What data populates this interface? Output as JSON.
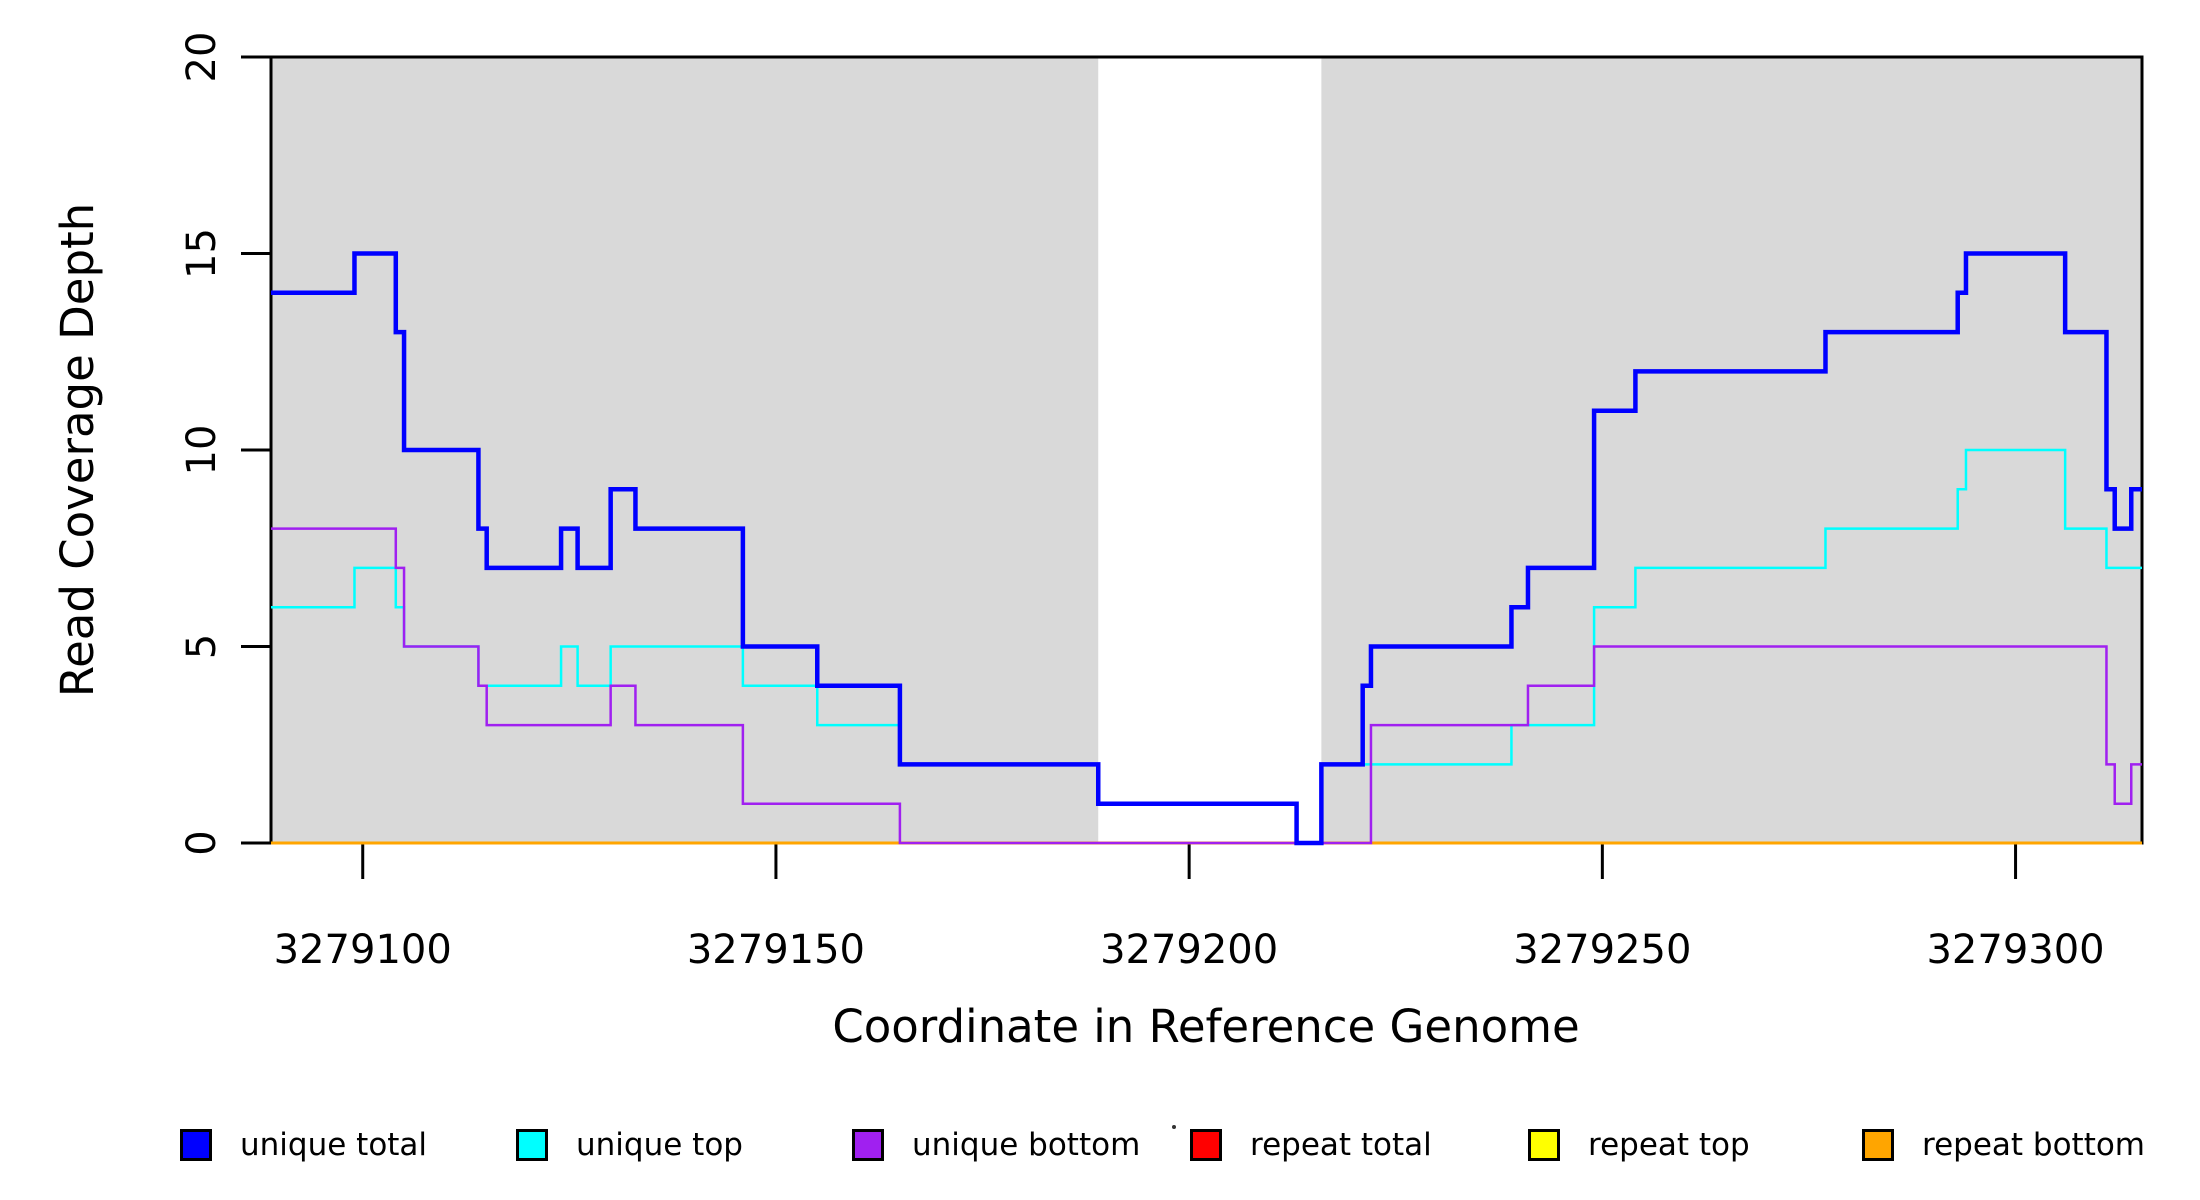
{
  "figure": {
    "background_color": "#FFFFFF",
    "region_highlight_color": "#D9D9D9",
    "axis_color": "#000000",
    "xlabel": "Coordinate in Reference Genome",
    "ylabel": "Read Coverage Depth"
  },
  "chart_data": {
    "type": "line",
    "subtype": "step",
    "title": "",
    "xlabel": "Coordinate in Reference Genome",
    "ylabel": "Read Coverage Depth",
    "xlim": [
      3279088.9,
      3279315.3
    ],
    "ylim": [
      0,
      20
    ],
    "x_ticks": [
      3279100,
      3279150,
      3279200,
      3279250,
      3279300
    ],
    "y_ticks": [
      0,
      5,
      10,
      15,
      20
    ],
    "grid": false,
    "legend_position": "bottom",
    "shaded_regions": [
      {
        "name": "covered-region-left",
        "x0": 3279088.9,
        "x1": 3279189,
        "color": "#D9D9D9"
      },
      {
        "name": "covered-region-right",
        "x0": 3279216,
        "x1": 3279315.3,
        "color": "#D9D9D9"
      }
    ],
    "series": [
      {
        "name": "unique total",
        "color": "#0000FF",
        "line_width": 4.5,
        "steps": [
          [
            3279089,
            14
          ],
          [
            3279099,
            15
          ],
          [
            3279104,
            13
          ],
          [
            3279105,
            10
          ],
          [
            3279114,
            8
          ],
          [
            3279115,
            7
          ],
          [
            3279124,
            8
          ],
          [
            3279126,
            7
          ],
          [
            3279130,
            9
          ],
          [
            3279133,
            8
          ],
          [
            3279146,
            5
          ],
          [
            3279155,
            4
          ],
          [
            3279165,
            2
          ],
          [
            3279189,
            1
          ],
          [
            3279213,
            0
          ],
          [
            3279216,
            2
          ],
          [
            3279221,
            4
          ],
          [
            3279222,
            5
          ],
          [
            3279239,
            6
          ],
          [
            3279241,
            7
          ],
          [
            3279249,
            11
          ],
          [
            3279254,
            12
          ],
          [
            3279277,
            13
          ],
          [
            3279293,
            14
          ],
          [
            3279294,
            15
          ],
          [
            3279306,
            13
          ],
          [
            3279311,
            9
          ],
          [
            3279312,
            8
          ],
          [
            3279314,
            9
          ]
        ]
      },
      {
        "name": "unique top",
        "color": "#00FFFF",
        "line_width": 2.5,
        "steps": [
          [
            3279089,
            6
          ],
          [
            3279099,
            7
          ],
          [
            3279104,
            6
          ],
          [
            3279105,
            5
          ],
          [
            3279114,
            4
          ],
          [
            3279124,
            5
          ],
          [
            3279126,
            4
          ],
          [
            3279130,
            5
          ],
          [
            3279146,
            4
          ],
          [
            3279155,
            3
          ],
          [
            3279165,
            2
          ],
          [
            3279189,
            1
          ],
          [
            3279213,
            0
          ],
          [
            3279216,
            2
          ],
          [
            3279239,
            3
          ],
          [
            3279249,
            6
          ],
          [
            3279254,
            7
          ],
          [
            3279277,
            8
          ],
          [
            3279293,
            9
          ],
          [
            3279294,
            10
          ],
          [
            3279306,
            8
          ],
          [
            3279311,
            7
          ]
        ]
      },
      {
        "name": "unique bottom",
        "color": "#A020F0",
        "line_width": 2.5,
        "steps": [
          [
            3279089,
            8
          ],
          [
            3279104,
            7
          ],
          [
            3279105,
            5
          ],
          [
            3279114,
            4
          ],
          [
            3279115,
            3
          ],
          [
            3279130,
            4
          ],
          [
            3279133,
            3
          ],
          [
            3279146,
            1
          ],
          [
            3279165,
            0
          ],
          [
            3279222,
            3
          ],
          [
            3279241,
            4
          ],
          [
            3279249,
            5
          ],
          [
            3279311,
            2
          ],
          [
            3279312,
            1
          ],
          [
            3279314,
            2
          ]
        ]
      },
      {
        "name": "repeat total",
        "color": "#FF0000",
        "line_width": 2.5,
        "steps": [
          [
            3279089,
            0
          ]
        ]
      },
      {
        "name": "repeat top",
        "color": "#FFFF00",
        "line_width": 2.5,
        "steps": [
          [
            3279089,
            0
          ]
        ]
      },
      {
        "name": "repeat bottom",
        "color": "#FFA500",
        "line_width": 3,
        "steps": [
          [
            3279089,
            0
          ]
        ]
      }
    ],
    "draw_order": [
      "repeat total",
      "repeat top",
      "repeat bottom",
      "unique top",
      "unique bottom",
      "unique total"
    ],
    "legend": [
      {
        "label": "unique total",
        "color": "#0000FF"
      },
      {
        "label": "unique top",
        "color": "#00FFFF"
      },
      {
        "label": "unique bottom",
        "color": "#A020F0"
      },
      {
        "label": "repeat total",
        "color": "#FF0000"
      },
      {
        "label": "repeat top",
        "color": "#FFFF00"
      },
      {
        "label": "repeat bottom",
        "color": "#FFA500"
      }
    ]
  }
}
